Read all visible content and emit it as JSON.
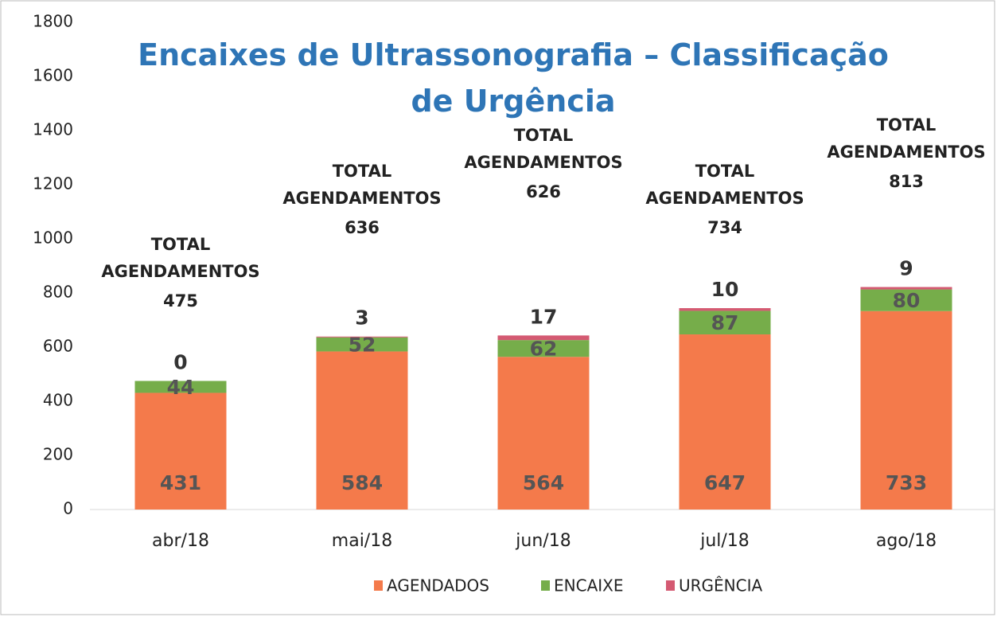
{
  "chart_data": {
    "type": "stacked_bar",
    "title": "Encaixes de Ultrassonografia – Classificação de Urgência",
    "categories": [
      "abr/18",
      "mai/18",
      "jun/18",
      "jul/18",
      "ago/18"
    ],
    "series": [
      {
        "name": "AGENDADOS",
        "color": "#f47a4b",
        "values": [
          431,
          584,
          564,
          647,
          733
        ]
      },
      {
        "name": "ENCAIXE",
        "color": "#76ad4a",
        "values": [
          44,
          52,
          62,
          87,
          80
        ]
      },
      {
        "name": "URGÊNCIA",
        "color": "#d45a72",
        "values": [
          0,
          3,
          17,
          10,
          9
        ]
      }
    ],
    "annotations": [
      {
        "label": "TOTAL AGENDAMENTOS",
        "value": 475
      },
      {
        "label": "TOTAL AGENDAMENTOS",
        "value": 636
      },
      {
        "label": "TOTAL AGENDAMENTOS",
        "value": 626
      },
      {
        "label": "TOTAL AGENDAMENTOS",
        "value": 734
      },
      {
        "label": "TOTAL AGENDAMENTOS",
        "value": 813
      }
    ],
    "ylim": [
      0,
      1800
    ],
    "yticks": [
      0,
      200,
      400,
      600,
      800,
      1000,
      1200,
      1400,
      1600,
      1800
    ],
    "grid": false,
    "legend": "bottom"
  }
}
